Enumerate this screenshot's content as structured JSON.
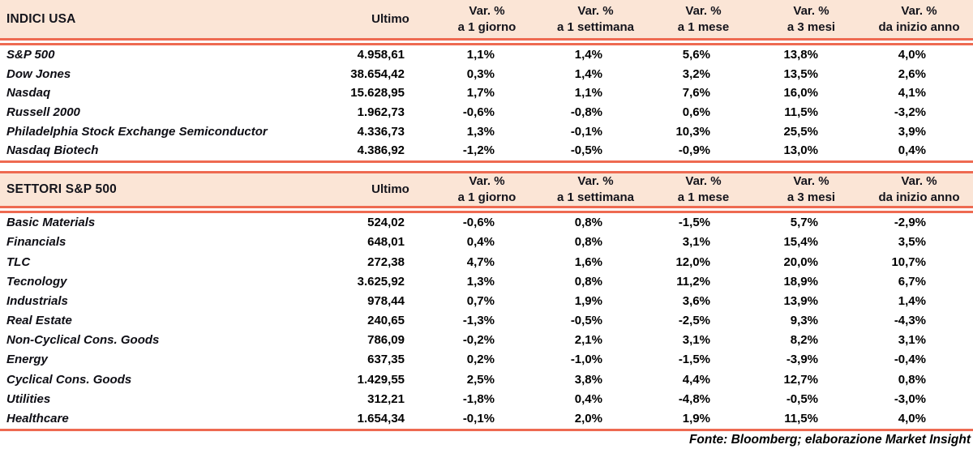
{
  "palette": {
    "header_bg": "#fbe5d6",
    "rule_color": "#ee6a51",
    "header_text": "#14141c",
    "body_text": "#000000"
  },
  "columns": {
    "ultimo": "Ultimo",
    "var_label": "Var. %",
    "periods": [
      "a 1 giorno",
      "a 1 settimana",
      "a 1 mese",
      "a 3 mesi",
      "da inizio anno"
    ]
  },
  "sections": [
    {
      "title": "INDICI USA",
      "rows": [
        {
          "name": "S&P 500",
          "ultimo": "4.958,61",
          "vars": [
            "1,1%",
            "1,4%",
            "5,6%",
            "13,8%",
            "4,0%"
          ]
        },
        {
          "name": "Dow Jones",
          "ultimo": "38.654,42",
          "vars": [
            "0,3%",
            "1,4%",
            "3,2%",
            "13,5%",
            "2,6%"
          ]
        },
        {
          "name": "Nasdaq",
          "ultimo": "15.628,95",
          "vars": [
            "1,7%",
            "1,1%",
            "7,6%",
            "16,0%",
            "4,1%"
          ]
        },
        {
          "name": "Russell 2000",
          "ultimo": "1.962,73",
          "vars": [
            "-0,6%",
            "-0,8%",
            "0,6%",
            "11,5%",
            "-3,2%"
          ]
        },
        {
          "name": "Philadelphia Stock Exchange Semiconductor",
          "ultimo": "4.336,73",
          "vars": [
            "1,3%",
            "-0,1%",
            "10,3%",
            "25,5%",
            "3,9%"
          ]
        },
        {
          "name": "Nasdaq Biotech",
          "ultimo": "4.386,92",
          "vars": [
            "-1,2%",
            "-0,5%",
            "-0,9%",
            "13,0%",
            "0,4%"
          ]
        }
      ]
    },
    {
      "title": "SETTORI S&P 500",
      "rows": [
        {
          "name": "Basic Materials",
          "ultimo": "524,02",
          "vars": [
            "-0,6%",
            "0,8%",
            "-1,5%",
            "5,7%",
            "-2,9%"
          ]
        },
        {
          "name": "Financials",
          "ultimo": "648,01",
          "vars": [
            "0,4%",
            "0,8%",
            "3,1%",
            "15,4%",
            "3,5%"
          ]
        },
        {
          "name": "TLC",
          "ultimo": "272,38",
          "vars": [
            "4,7%",
            "1,6%",
            "12,0%",
            "20,0%",
            "10,7%"
          ]
        },
        {
          "name": "Tecnology",
          "ultimo": "3.625,92",
          "vars": [
            "1,3%",
            "0,8%",
            "11,2%",
            "18,9%",
            "6,7%"
          ]
        },
        {
          "name": "Industrials",
          "ultimo": "978,44",
          "vars": [
            "0,7%",
            "1,9%",
            "3,6%",
            "13,9%",
            "1,4%"
          ]
        },
        {
          "name": "Real Estate",
          "ultimo": "240,65",
          "vars": [
            "-1,3%",
            "-0,5%",
            "-2,5%",
            "9,3%",
            "-4,3%"
          ]
        },
        {
          "name": "Non-Cyclical Cons. Goods",
          "ultimo": "786,09",
          "vars": [
            "-0,2%",
            "2,1%",
            "3,1%",
            "8,2%",
            "3,1%"
          ]
        },
        {
          "name": "Energy",
          "ultimo": "637,35",
          "vars": [
            "0,2%",
            "-1,0%",
            "-1,5%",
            "-3,9%",
            "-0,4%"
          ]
        },
        {
          "name": "Cyclical Cons. Goods",
          "ultimo": "1.429,55",
          "vars": [
            "2,5%",
            "3,8%",
            "4,4%",
            "12,7%",
            "0,8%"
          ]
        },
        {
          "name": "Utilities",
          "ultimo": "312,21",
          "vars": [
            "-1,8%",
            "0,4%",
            "-4,8%",
            "-0,5%",
            "-3,0%"
          ]
        },
        {
          "name": "Healthcare",
          "ultimo": "1.654,34",
          "vars": [
            "-0,1%",
            "2,0%",
            "1,9%",
            "11,5%",
            "4,0%"
          ]
        }
      ]
    }
  ],
  "footer": "Fonte: Bloomberg; elaborazione Market Insight"
}
